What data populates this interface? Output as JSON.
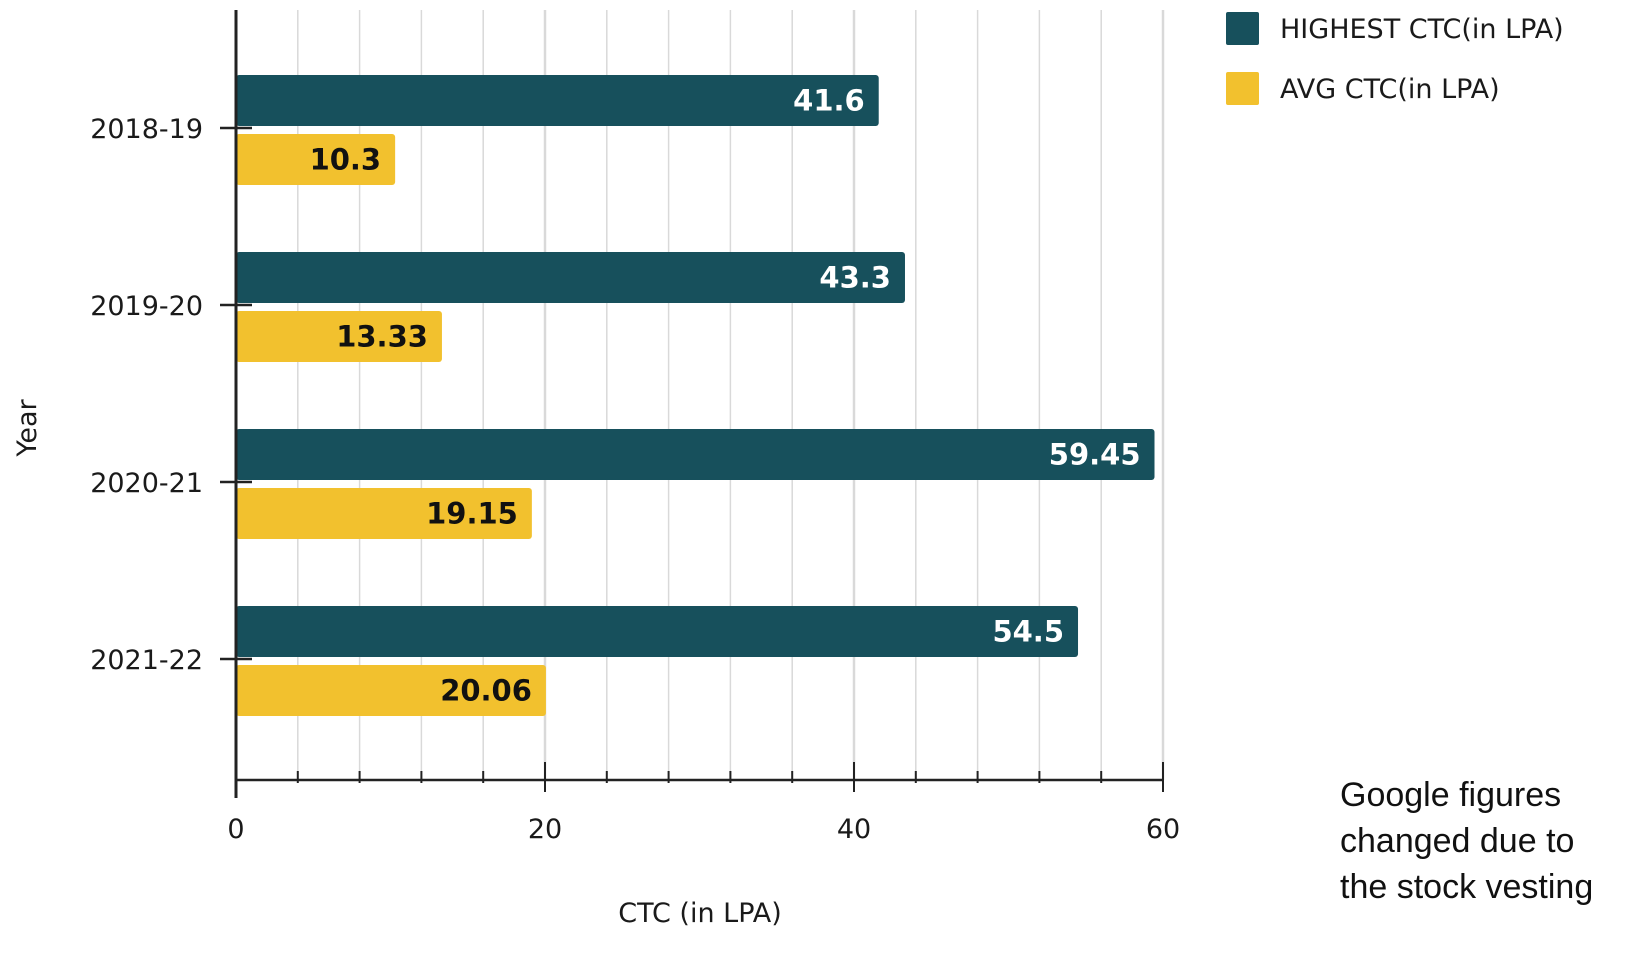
{
  "chart_data": {
    "type": "bar",
    "orientation": "horizontal",
    "categories": [
      "2018-19",
      "2019-20",
      "2020-21",
      "2021-22"
    ],
    "series": [
      {
        "name": "HIGHEST CTC(in LPA)",
        "values": [
          41.6,
          43.3,
          59.45,
          54.5
        ],
        "labels": [
          "41.6",
          "43.3",
          "59.45",
          "54.5"
        ],
        "color": "#17505c",
        "label_color": "#ffffff"
      },
      {
        "name": "AVG CTC(in LPA)",
        "values": [
          10.3,
          13.33,
          19.15,
          20.06
        ],
        "labels": [
          "10.3",
          "13.33",
          "19.15",
          "20.06"
        ],
        "color": "#f2c12e",
        "label_color": "#111111"
      }
    ],
    "xlabel": "CTC (in LPA)",
    "ylabel": "Year",
    "xlim": [
      0,
      60
    ],
    "x_ticks": [
      0,
      20,
      40,
      60
    ],
    "x_tick_labels": [
      "0",
      "20",
      "40",
      "60"
    ],
    "minor_tick_step": 4,
    "grid": true,
    "legend_position": "top-right"
  },
  "annotation": {
    "text": "Google figures\nchanged due to\nthe stock vesting"
  },
  "colors": {
    "grid": "#d9d9d9",
    "axis": "#222222"
  }
}
